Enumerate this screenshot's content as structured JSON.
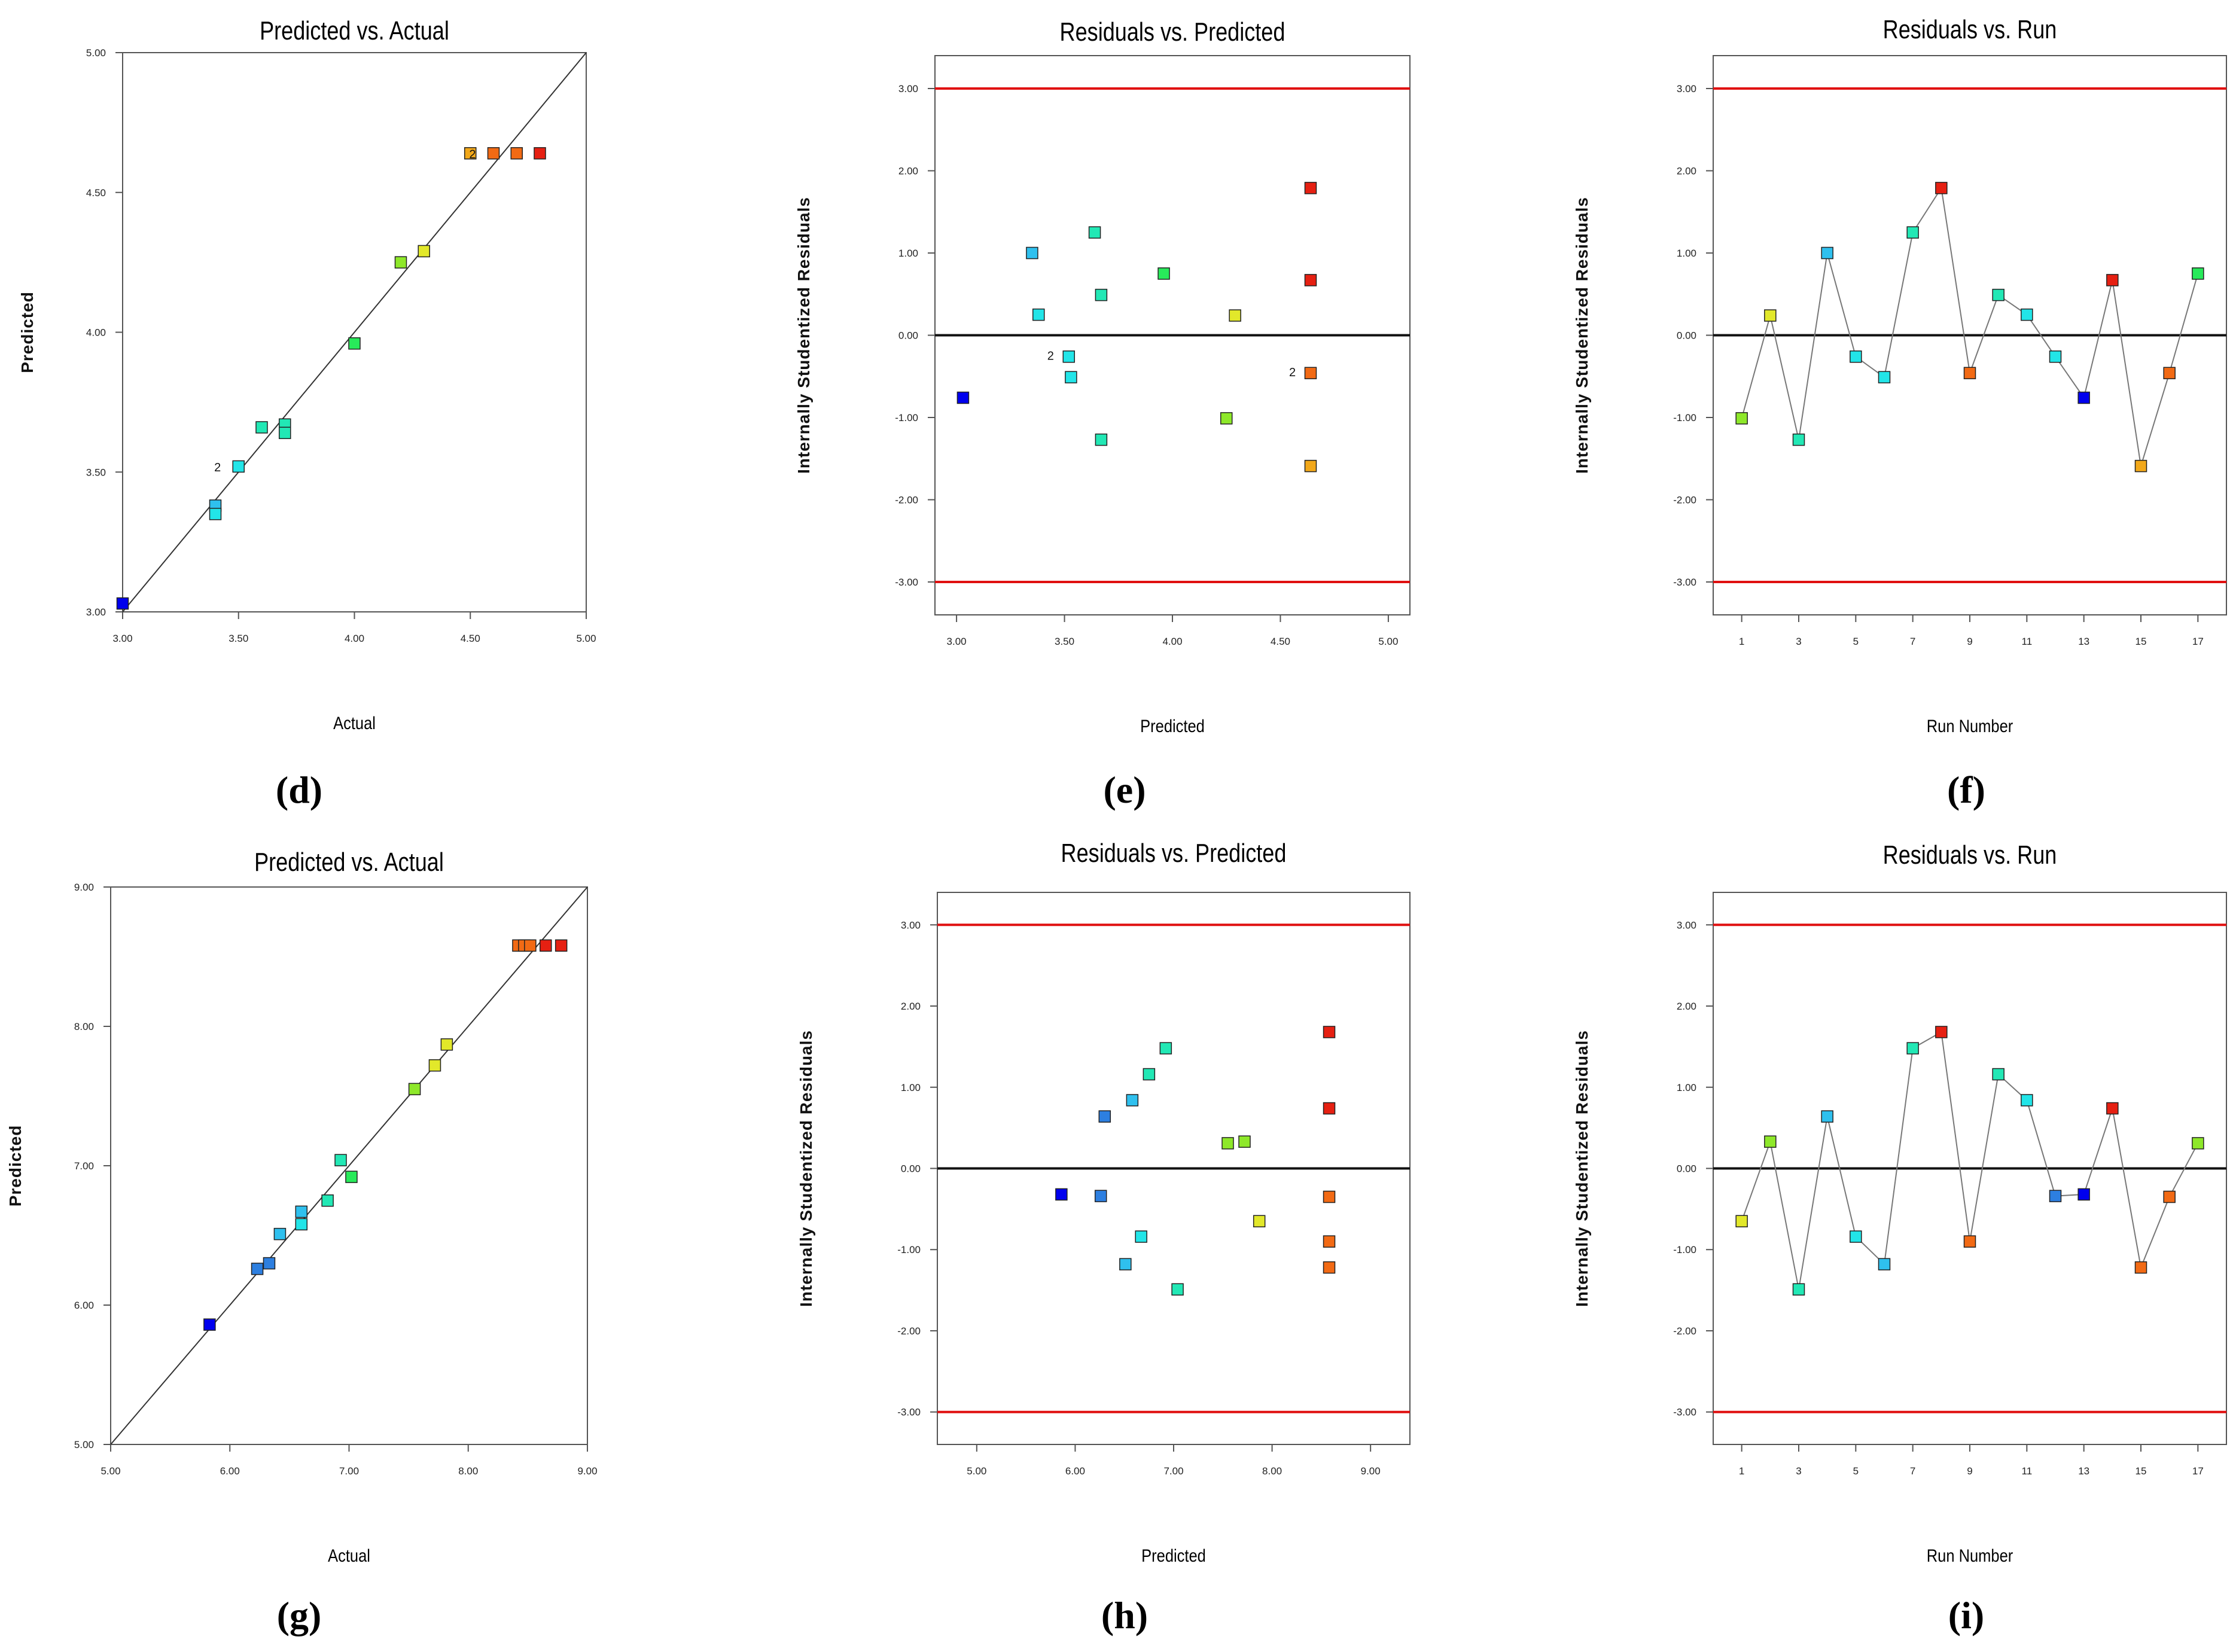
{
  "palette": {
    "blue": "#0000ee",
    "blue2": "#2d7fe0",
    "sky": "#2fc0ee",
    "cyan": "#22e5e8",
    "aqua": "#22e8b5",
    "green": "#28ea5a",
    "lime": "#8ee82a",
    "yellow": "#e2e82a",
    "amber": "#f2a81a",
    "orange": "#f26a14",
    "red": "#e62012",
    "refline": "#e01010"
  },
  "panels": [
    {
      "label": "(d)",
      "chart_data": {
        "type": "scatter",
        "title": "Predicted vs. Actual",
        "xlabel": "Actual",
        "ylabel": "Predicted",
        "xlim": [
          3.0,
          5.0
        ],
        "ylim": [
          3.0,
          5.0
        ],
        "xticks": [
          "3.00",
          "3.50",
          "4.00",
          "4.50",
          "5.00"
        ],
        "yticks": [
          "3.00",
          "3.50",
          "4.00",
          "4.50",
          "5.00"
        ],
        "diagonal": true,
        "points": [
          {
            "x": 3.0,
            "y": 3.03,
            "color": "blue"
          },
          {
            "x": 3.4,
            "y": 3.38,
            "color": "sky"
          },
          {
            "x": 3.4,
            "y": 3.35,
            "color": "cyan"
          },
          {
            "x": 3.5,
            "y": 3.52,
            "color": "cyan"
          },
          {
            "x": 3.6,
            "y": 3.66,
            "color": "aqua"
          },
          {
            "x": 3.7,
            "y": 3.67,
            "color": "aqua"
          },
          {
            "x": 3.7,
            "y": 3.64,
            "color": "aqua"
          },
          {
            "x": 4.0,
            "y": 3.96,
            "color": "green"
          },
          {
            "x": 4.2,
            "y": 4.25,
            "color": "lime"
          },
          {
            "x": 4.3,
            "y": 4.29,
            "color": "yellow"
          },
          {
            "x": 4.5,
            "y": 4.64,
            "color": "amber"
          },
          {
            "x": 4.6,
            "y": 4.64,
            "color": "orange"
          },
          {
            "x": 4.7,
            "y": 4.64,
            "color": "orange"
          },
          {
            "x": 4.8,
            "y": 4.64,
            "color": "red"
          }
        ],
        "annotations": [
          {
            "text": "2",
            "x": 3.46,
            "y": 3.52
          },
          {
            "text": "2",
            "x": 4.56,
            "y": 4.64
          }
        ]
      }
    },
    {
      "label": "(e)",
      "chart_data": {
        "type": "scatter",
        "title": "Residuals vs. Predicted",
        "xlabel": "Predicted",
        "ylabel": "Internally Studentized Residuals",
        "xlim": [
          2.9,
          5.1
        ],
        "ylim": [
          -3.4,
          3.4
        ],
        "xticks": [
          "3.00",
          "3.50",
          "4.00",
          "4.50",
          "5.00"
        ],
        "yticks": [
          "-3.00",
          "-2.00",
          "-1.00",
          "0.00",
          "1.00",
          "2.00",
          "3.00"
        ],
        "redlines": [
          3.0,
          -3.0
        ],
        "zeroline": true,
        "points": [
          {
            "x": 3.03,
            "y": -0.76,
            "color": "blue"
          },
          {
            "x": 3.35,
            "y": 1.0,
            "color": "sky"
          },
          {
            "x": 3.38,
            "y": 0.25,
            "color": "cyan"
          },
          {
            "x": 3.52,
            "y": -0.26,
            "color": "cyan"
          },
          {
            "x": 3.53,
            "y": -0.51,
            "color": "cyan"
          },
          {
            "x": 3.64,
            "y": 1.25,
            "color": "aqua"
          },
          {
            "x": 3.67,
            "y": 0.49,
            "color": "aqua"
          },
          {
            "x": 3.67,
            "y": -1.27,
            "color": "aqua"
          },
          {
            "x": 3.96,
            "y": 0.75,
            "color": "green"
          },
          {
            "x": 4.25,
            "y": -1.01,
            "color": "lime"
          },
          {
            "x": 4.29,
            "y": 0.24,
            "color": "yellow"
          },
          {
            "x": 4.64,
            "y": 1.79,
            "color": "red"
          },
          {
            "x": 4.64,
            "y": 0.67,
            "color": "red"
          },
          {
            "x": 4.64,
            "y": -0.46,
            "color": "orange"
          },
          {
            "x": 4.64,
            "y": -1.59,
            "color": "amber"
          }
        ],
        "annotations": [
          {
            "text": "2",
            "x": 3.49,
            "y": -0.24
          },
          {
            "text": "2",
            "x": 4.61,
            "y": -0.44
          }
        ]
      }
    },
    {
      "label": "(f)",
      "chart_data": {
        "type": "line",
        "title": "Residuals vs. Run",
        "xlabel": "Run Number",
        "ylabel": "Internally Studentized Residuals",
        "xlim": [
          0,
          18
        ],
        "ylim": [
          -3.4,
          3.4
        ],
        "xticks": [
          "1",
          "3",
          "5",
          "7",
          "9",
          "11",
          "13",
          "15",
          "17"
        ],
        "yticks": [
          "-3.00",
          "-2.00",
          "-1.00",
          "0.00",
          "1.00",
          "2.00",
          "3.00"
        ],
        "redlines": [
          3.0,
          -3.0
        ],
        "zeroline": true,
        "runs": [
          1,
          2,
          3,
          4,
          5,
          6,
          7,
          8,
          9,
          10,
          11,
          12,
          13,
          14,
          15,
          16,
          17
        ],
        "values": [
          -1.01,
          0.24,
          -1.27,
          1.0,
          -0.26,
          -0.51,
          1.25,
          1.79,
          -0.46,
          0.49,
          0.25,
          -0.26,
          -0.76,
          0.67,
          -1.59,
          -0.46,
          0.75
        ],
        "colors": [
          "lime",
          "yellow",
          "aqua",
          "sky",
          "cyan",
          "cyan",
          "aqua",
          "red",
          "orange",
          "aqua",
          "cyan",
          "cyan",
          "blue",
          "red",
          "amber",
          "orange",
          "green"
        ]
      }
    },
    {
      "label": "(g)",
      "chart_data": {
        "type": "scatter",
        "title": "Predicted vs. Actual",
        "xlabel": "Actual",
        "ylabel": "Predicted",
        "xlim": [
          5.0,
          9.0
        ],
        "ylim": [
          5.0,
          9.0
        ],
        "xticks": [
          "5.00",
          "6.00",
          "7.00",
          "8.00",
          "9.00"
        ],
        "yticks": [
          "5.00",
          "6.00",
          "7.00",
          "8.00",
          "9.00"
        ],
        "diagonal": true,
        "points": [
          {
            "x": 5.83,
            "y": 5.86,
            "color": "blue"
          },
          {
            "x": 6.23,
            "y": 6.26,
            "color": "blue2"
          },
          {
            "x": 6.33,
            "y": 6.3,
            "color": "blue2"
          },
          {
            "x": 6.42,
            "y": 6.51,
            "color": "sky"
          },
          {
            "x": 6.6,
            "y": 6.67,
            "color": "sky"
          },
          {
            "x": 6.6,
            "y": 6.58,
            "color": "cyan"
          },
          {
            "x": 6.82,
            "y": 6.75,
            "color": "aqua"
          },
          {
            "x": 6.93,
            "y": 7.04,
            "color": "aqua"
          },
          {
            "x": 7.02,
            "y": 6.92,
            "color": "green"
          },
          {
            "x": 7.55,
            "y": 7.55,
            "color": "lime"
          },
          {
            "x": 7.72,
            "y": 7.72,
            "color": "yellow"
          },
          {
            "x": 7.82,
            "y": 7.87,
            "color": "yellow"
          },
          {
            "x": 8.42,
            "y": 8.58,
            "color": "orange"
          },
          {
            "x": 8.47,
            "y": 8.58,
            "color": "orange"
          },
          {
            "x": 8.52,
            "y": 8.58,
            "color": "orange"
          },
          {
            "x": 8.65,
            "y": 8.58,
            "color": "red"
          },
          {
            "x": 8.78,
            "y": 8.58,
            "color": "red"
          }
        ],
        "annotations": []
      }
    },
    {
      "label": "(h)",
      "chart_data": {
        "type": "scatter",
        "title": "Residuals vs. Predicted",
        "xlabel": "Predicted",
        "ylabel": "Internally Studentized Residuals",
        "xlim": [
          4.6,
          9.4
        ],
        "ylim": [
          -3.4,
          3.4
        ],
        "xticks": [
          "5.00",
          "6.00",
          "7.00",
          "8.00",
          "9.00"
        ],
        "yticks": [
          "-3.00",
          "-2.00",
          "-1.00",
          "0.00",
          "1.00",
          "2.00",
          "3.00"
        ],
        "redlines": [
          3.0,
          -3.0
        ],
        "zeroline": true,
        "points": [
          {
            "x": 5.86,
            "y": -0.32,
            "color": "blue"
          },
          {
            "x": 6.26,
            "y": -0.34,
            "color": "blue2"
          },
          {
            "x": 6.3,
            "y": 0.64,
            "color": "blue2"
          },
          {
            "x": 6.51,
            "y": -1.18,
            "color": "sky"
          },
          {
            "x": 6.58,
            "y": 0.84,
            "color": "sky"
          },
          {
            "x": 6.67,
            "y": -0.84,
            "color": "cyan"
          },
          {
            "x": 6.75,
            "y": 1.16,
            "color": "aqua"
          },
          {
            "x": 6.92,
            "y": 1.48,
            "color": "aqua"
          },
          {
            "x": 7.04,
            "y": -1.49,
            "color": "aqua"
          },
          {
            "x": 7.55,
            "y": 0.31,
            "color": "lime"
          },
          {
            "x": 7.72,
            "y": 0.33,
            "color": "lime"
          },
          {
            "x": 7.87,
            "y": -0.65,
            "color": "yellow"
          },
          {
            "x": 8.58,
            "y": 1.68,
            "color": "red"
          },
          {
            "x": 8.58,
            "y": 0.74,
            "color": "red"
          },
          {
            "x": 8.58,
            "y": -0.35,
            "color": "orange"
          },
          {
            "x": 8.58,
            "y": -0.9,
            "color": "orange"
          },
          {
            "x": 8.58,
            "y": -1.22,
            "color": "orange"
          }
        ],
        "annotations": []
      }
    },
    {
      "label": "(i)",
      "chart_data": {
        "type": "line",
        "title": "Residuals vs. Run",
        "xlabel": "Run Number",
        "ylabel": "Internally Studentized Residuals",
        "xlim": [
          0,
          18
        ],
        "ylim": [
          -3.4,
          3.4
        ],
        "xticks": [
          "1",
          "3",
          "5",
          "7",
          "9",
          "11",
          "13",
          "15",
          "17"
        ],
        "yticks": [
          "-3.00",
          "-2.00",
          "-1.00",
          "0.00",
          "1.00",
          "2.00",
          "3.00"
        ],
        "redlines": [
          3.0,
          -3.0
        ],
        "zeroline": true,
        "runs": [
          1,
          2,
          3,
          4,
          5,
          6,
          7,
          8,
          9,
          10,
          11,
          12,
          13,
          14,
          15,
          16,
          17
        ],
        "values": [
          -0.65,
          0.33,
          -1.49,
          0.64,
          -0.84,
          -1.18,
          1.48,
          1.68,
          -0.9,
          1.16,
          0.84,
          -0.34,
          -0.32,
          0.74,
          -1.22,
          -0.35,
          0.31
        ],
        "colors": [
          "yellow",
          "lime",
          "aqua",
          "sky",
          "cyan",
          "sky",
          "aqua",
          "red",
          "orange",
          "aqua",
          "cyan",
          "blue2",
          "blue",
          "red",
          "orange",
          "orange",
          "lime"
        ]
      }
    }
  ]
}
